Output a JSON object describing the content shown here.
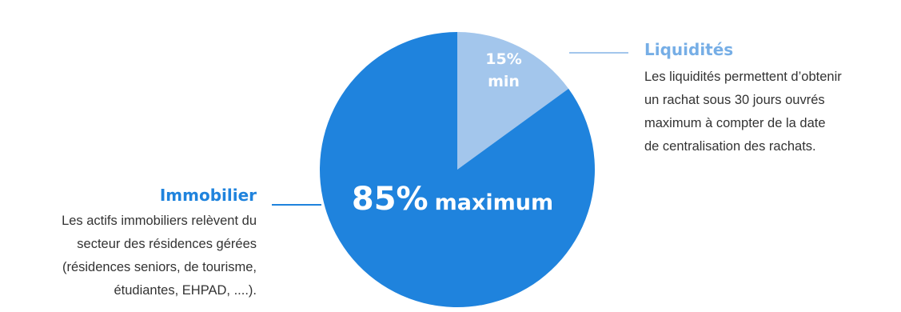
{
  "chart_data": {
    "type": "pie",
    "start_angle_deg": 0,
    "direction": "clockwise",
    "slices": [
      {
        "key": "liquidites",
        "value": 15,
        "label_line1": "15%",
        "label_line2": "min",
        "color": "#a3c6ec"
      },
      {
        "key": "immobilier",
        "value": 85,
        "label_big": "85%",
        "label_small": "maximum",
        "color": "#1f83dd"
      }
    ],
    "legend": [
      {
        "key": "liquidites",
        "title": "Liquidités",
        "title_color": "#76aee6",
        "line_color": "#a3c6ec",
        "description_lines": [
          "Les liquidités permettent d’obtenir",
          "un rachat sous 30 jours ouvrés",
          "maximum à compter de la date",
          "de centralisation des rachats."
        ]
      },
      {
        "key": "immobilier",
        "title": "Immobilier",
        "title_color": "#1f83dd",
        "line_color": "#1f83dd",
        "description_lines": [
          "Les actifs immobiliers relèvent du",
          "secteur des résidences gérées",
          "(résidences seniors, de tourisme,",
          "étudiantes, EHPAD, ....)."
        ]
      }
    ]
  }
}
